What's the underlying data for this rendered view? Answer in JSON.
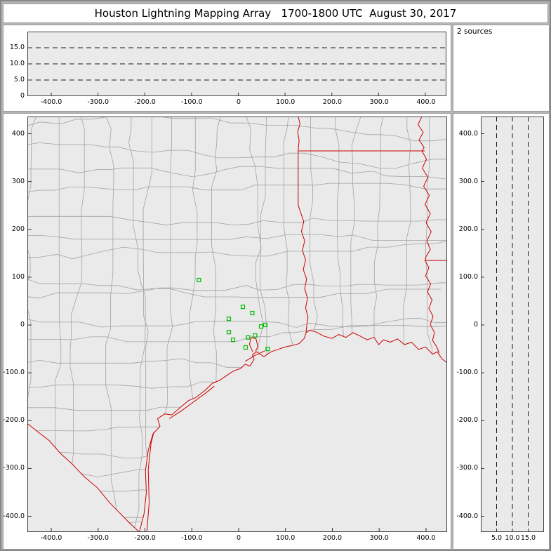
{
  "title": "Houston Lightning Mapping Array   1700-1800 UTC  August 30, 2017",
  "sources_label": "2 sources",
  "colors": {
    "frame_bg": "#b5b5b5",
    "panel_bg": "#ffffff",
    "plot_bg": "#eaeaea",
    "plot_border": "#444444",
    "state_border": "#cc0000",
    "county_line": "#a3a3a3",
    "station": "#00bb00",
    "dash_line": "#1a1a1a",
    "tick": "#333333"
  },
  "axes": {
    "map_extent": {
      "xmin": -451,
      "xmax": 445,
      "ymin": -433,
      "ymax": 436
    },
    "alt_range": [
      0,
      20
    ],
    "map_x": {
      "ticks": [
        {
          "v": -400,
          "label": "-400.0"
        },
        {
          "v": -300,
          "label": "-300.0"
        },
        {
          "v": -200,
          "label": "-200.0"
        },
        {
          "v": -100,
          "label": "-100.0"
        },
        {
          "v": 0,
          "label": "0"
        },
        {
          "v": 100,
          "label": "100.0"
        },
        {
          "v": 200,
          "label": "200.0"
        },
        {
          "v": 300,
          "label": "300.0"
        },
        {
          "v": 400,
          "label": "400.0"
        }
      ]
    },
    "map_y": {
      "ticks": [
        {
          "v": 400,
          "label": "400"
        },
        {
          "v": 300,
          "label": "300"
        },
        {
          "v": 200,
          "label": "200"
        },
        {
          "v": 100,
          "label": "100"
        },
        {
          "v": 0,
          "label": "0"
        },
        {
          "v": -100,
          "label": "-100.0"
        },
        {
          "v": -200,
          "label": "-200.0"
        },
        {
          "v": -300,
          "label": "-300.0"
        },
        {
          "v": -400,
          "label": "-400.0"
        }
      ]
    },
    "right_y": {
      "ticks": [
        {
          "v": 400,
          "label": "400.0"
        },
        {
          "v": 300,
          "label": "300.0"
        },
        {
          "v": 200,
          "label": "200.0"
        },
        {
          "v": 100,
          "label": "100.0"
        },
        {
          "v": 0,
          "label": "0"
        },
        {
          "v": -100,
          "label": "-100.0"
        },
        {
          "v": -200,
          "label": "-200.0"
        },
        {
          "v": -300,
          "label": "-300.0"
        },
        {
          "v": -400,
          "label": "-400.0"
        }
      ]
    },
    "alt_y": {
      "ticks": [
        {
          "v": 15,
          "label": "15.0"
        },
        {
          "v": 10,
          "label": "10.0"
        },
        {
          "v": 5,
          "label": "5.0"
        },
        {
          "v": 0,
          "label": "0"
        }
      ],
      "dash_values": [
        5,
        10,
        15
      ]
    },
    "alt_x": {
      "ticks": [
        {
          "v": 5,
          "label": "5.0"
        },
        {
          "v": 10,
          "label": "10.0"
        },
        {
          "v": 15,
          "label": "15.0"
        }
      ],
      "dash_values": [
        5,
        10,
        15
      ]
    }
  },
  "stations": [
    [
      -85,
      94
    ],
    [
      9,
      38
    ],
    [
      29,
      25
    ],
    [
      -21,
      13
    ],
    [
      48,
      -3
    ],
    [
      57,
      0
    ],
    [
      -21,
      -15
    ],
    [
      -12,
      -31
    ],
    [
      20,
      -26
    ],
    [
      35,
      -22
    ],
    [
      15,
      -47
    ],
    [
      62,
      -50
    ]
  ],
  "geo": {
    "coast": [
      [
        -212,
        -433
      ],
      [
        -202,
        -395
      ],
      [
        -197,
        -350
      ],
      [
        -199,
        -305
      ],
      [
        -193,
        -262
      ],
      [
        -183,
        -228
      ],
      [
        -168,
        -212
      ],
      [
        -173,
        -196
      ],
      [
        -158,
        -186
      ],
      [
        -143,
        -188
      ],
      [
        -124,
        -172
      ],
      [
        -107,
        -158
      ],
      [
        -92,
        -152
      ],
      [
        -72,
        -137
      ],
      [
        -56,
        -122
      ],
      [
        -41,
        -116
      ],
      [
        -26,
        -106
      ],
      [
        -11,
        -96
      ],
      [
        4,
        -91
      ],
      [
        14,
        -82
      ],
      [
        24,
        -86
      ],
      [
        33,
        -72
      ],
      [
        29,
        -62
      ],
      [
        38,
        -56
      ],
      [
        54,
        -66
      ],
      [
        69,
        -56
      ],
      [
        84,
        -51
      ],
      [
        99,
        -46
      ],
      [
        114,
        -43
      ],
      [
        129,
        -39
      ],
      [
        140,
        -28
      ],
      [
        144,
        -16
      ],
      [
        152,
        -11
      ],
      [
        166,
        -15
      ],
      [
        181,
        -23
      ],
      [
        199,
        -28
      ],
      [
        214,
        -20
      ],
      [
        229,
        -26
      ],
      [
        244,
        -16
      ],
      [
        259,
        -23
      ],
      [
        274,
        -31
      ],
      [
        289,
        -26
      ],
      [
        299,
        -41
      ],
      [
        309,
        -31
      ],
      [
        324,
        -36
      ],
      [
        339,
        -29
      ],
      [
        354,
        -41
      ],
      [
        369,
        -36
      ],
      [
        384,
        -51
      ],
      [
        399,
        -46
      ],
      [
        414,
        -61
      ],
      [
        424,
        -56
      ],
      [
        434,
        -71
      ],
      [
        445,
        -79
      ]
    ],
    "barrier_island": [
      [
        -196,
        -433
      ],
      [
        -191,
        -372
      ],
      [
        -193,
        -302
      ],
      [
        -187,
        -247
      ],
      [
        -181,
        -224
      ]
    ],
    "matagorda_island": [
      [
        -148,
        -196
      ],
      [
        -120,
        -178
      ],
      [
        -95,
        -160
      ],
      [
        -70,
        -142
      ],
      [
        -52,
        -128
      ]
    ],
    "galveston_island": [
      [
        14,
        -76
      ],
      [
        34,
        -64
      ],
      [
        56,
        -54
      ]
    ],
    "galveston_bay": [
      [
        30,
        -56
      ],
      [
        23,
        -40
      ],
      [
        27,
        -26
      ],
      [
        37,
        -29
      ],
      [
        41,
        -45
      ],
      [
        36,
        -55
      ]
    ],
    "rio_grande": [
      [
        -451,
        -206
      ],
      [
        -428,
        -224
      ],
      [
        -404,
        -242
      ],
      [
        -381,
        -268
      ],
      [
        -356,
        -290
      ],
      [
        -331,
        -316
      ],
      [
        -301,
        -341
      ],
      [
        -276,
        -371
      ],
      [
        -251,
        -396
      ],
      [
        -231,
        -416
      ],
      [
        -212,
        -433
      ]
    ],
    "tx_east_border": [
      [
        127,
        436
      ],
      [
        131,
        421
      ],
      [
        126,
        404
      ],
      [
        129,
        386
      ],
      [
        127,
        364
      ],
      [
        127,
        299
      ],
      [
        127,
        251
      ],
      [
        132,
        236
      ],
      [
        139,
        216
      ],
      [
        134,
        196
      ],
      [
        141,
        176
      ],
      [
        136,
        156
      ],
      [
        143,
        136
      ],
      [
        138,
        116
      ],
      [
        145,
        96
      ],
      [
        141,
        76
      ],
      [
        147,
        56
      ],
      [
        143,
        36
      ],
      [
        148,
        16
      ],
      [
        145,
        -4
      ],
      [
        144,
        -16
      ]
    ],
    "ar_la_border": [
      [
        127,
        364
      ],
      [
        397,
        364
      ]
    ],
    "ms_river": [
      [
        391,
        436
      ],
      [
        383,
        419
      ],
      [
        394,
        403
      ],
      [
        385,
        387
      ],
      [
        396,
        371
      ],
      [
        391,
        364
      ],
      [
        401,
        347
      ],
      [
        392,
        328
      ],
      [
        404,
        309
      ],
      [
        395,
        290
      ],
      [
        407,
        271
      ],
      [
        398,
        252
      ],
      [
        409,
        233
      ],
      [
        400,
        214
      ],
      [
        411,
        195
      ],
      [
        402,
        176
      ],
      [
        409,
        158
      ],
      [
        400,
        143
      ],
      [
        398,
        135
      ],
      [
        406,
        120
      ],
      [
        399,
        103
      ],
      [
        410,
        86
      ],
      [
        403,
        69
      ],
      [
        413,
        52
      ],
      [
        406,
        35
      ],
      [
        415,
        18
      ],
      [
        409,
        1
      ],
      [
        418,
        -16
      ],
      [
        414,
        -32
      ],
      [
        423,
        -46
      ],
      [
        428,
        -58
      ]
    ],
    "la_ms_border": [
      [
        398,
        135
      ],
      [
        445,
        135
      ]
    ]
  }
}
